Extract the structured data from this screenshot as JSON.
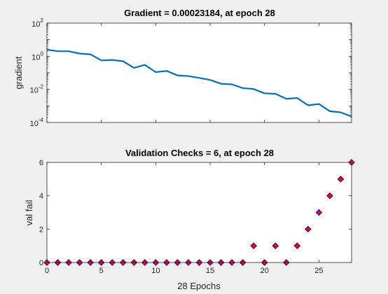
{
  "chart_data": [
    {
      "type": "line",
      "title": "Gradient = 0.00023184, at epoch 28",
      "xlabel": "",
      "ylabel": "gradient",
      "xlim": [
        0,
        28
      ],
      "ylim": [
        0.0001,
        100
      ],
      "yscale": "log",
      "ytick_labels": [
        {
          "base": "10",
          "exp": "-4"
        },
        {
          "base": "10",
          "exp": "-2"
        },
        {
          "base": "10",
          "exp": "0"
        },
        {
          "base": "10",
          "exp": "2"
        }
      ],
      "ytick_values": [
        0.0001,
        0.01,
        1,
        100
      ],
      "xticks": [
        0,
        5,
        10,
        15,
        20,
        25
      ],
      "x_tick_labels_shown": false,
      "line_color": "#0072bd",
      "x": [
        0,
        1,
        2,
        3,
        4,
        5,
        6,
        7,
        8,
        9,
        10,
        11,
        12,
        13,
        14,
        15,
        16,
        17,
        18,
        19,
        20,
        21,
        22,
        23,
        24,
        25,
        26,
        27,
        28
      ],
      "y": [
        2.5,
        2.0,
        2.0,
        1.45,
        1.3,
        0.56,
        0.6,
        0.5,
        0.2,
        0.3,
        0.11,
        0.13,
        0.07,
        0.063,
        0.049,
        0.037,
        0.022,
        0.02,
        0.012,
        0.0105,
        0.0058,
        0.0054,
        0.0027,
        0.003,
        0.0011,
        0.0013,
        0.00048,
        0.00041,
        0.00023184
      ]
    },
    {
      "type": "scatter",
      "title": "Validation Checks = 6, at epoch 28",
      "xlabel": "28 Epochs",
      "ylabel": "val fail",
      "xlim": [
        0,
        28
      ],
      "ylim": [
        0,
        6
      ],
      "xticks": [
        0,
        5,
        10,
        15,
        20,
        25
      ],
      "yticks": [
        0,
        2,
        4,
        6
      ],
      "marker": "diamond",
      "marker_fill": "#ff0000",
      "marker_edge": "#0000cc",
      "x": [
        0,
        1,
        2,
        3,
        4,
        5,
        6,
        7,
        8,
        9,
        10,
        11,
        12,
        13,
        14,
        15,
        16,
        17,
        18,
        19,
        20,
        21,
        22,
        23,
        24,
        25,
        26,
        27,
        28
      ],
      "y": [
        0,
        0,
        0,
        0,
        0,
        0,
        0,
        0,
        0,
        0,
        0,
        0,
        0,
        0,
        0,
        0,
        0,
        0,
        0,
        1,
        0,
        1,
        0,
        1,
        2,
        3,
        4,
        5,
        6
      ]
    }
  ]
}
